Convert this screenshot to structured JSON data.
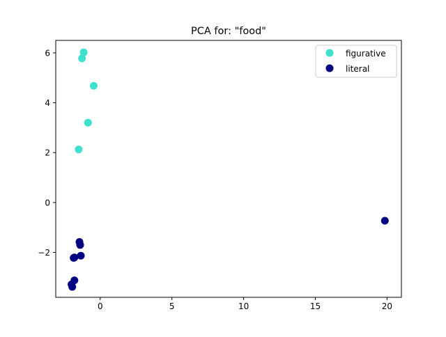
{
  "chart_data": {
    "type": "scatter",
    "title": "PCA for: \"food\"",
    "xlabel": "",
    "ylabel": "",
    "xlim": [
      -3.1,
      21.0
    ],
    "ylim": [
      -3.8,
      6.5
    ],
    "x_ticks": [
      0,
      5,
      10,
      15,
      20
    ],
    "y_ticks": [
      -2,
      0,
      2,
      4,
      6
    ],
    "grid": false,
    "legend_position": "top-right",
    "series": [
      {
        "name": "figurative",
        "color": "#40e0d0",
        "points": [
          [
            -1.15,
            6.02
          ],
          [
            -1.27,
            5.78
          ],
          [
            -0.45,
            4.68
          ],
          [
            -0.85,
            3.2
          ],
          [
            -1.5,
            2.13
          ]
        ]
      },
      {
        "name": "literal",
        "color": "#000080",
        "points": [
          [
            19.85,
            -0.73
          ],
          [
            -1.45,
            -1.58
          ],
          [
            -1.4,
            -1.7
          ],
          [
            -1.35,
            -2.13
          ],
          [
            -1.85,
            -2.22
          ],
          [
            -1.8,
            -2.2
          ],
          [
            -1.8,
            -3.12
          ],
          [
            -2.0,
            -3.28
          ],
          [
            -1.95,
            -3.38
          ]
        ]
      }
    ]
  }
}
